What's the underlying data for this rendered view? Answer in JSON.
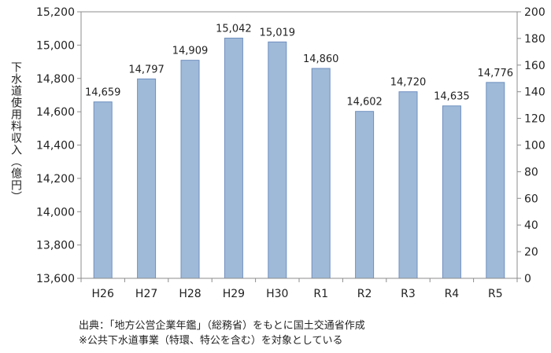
{
  "chart_data": {
    "type": "bar",
    "categories": [
      "H26",
      "H27",
      "H28",
      "H29",
      "H30",
      "R1",
      "R2",
      "R3",
      "R4",
      "R5"
    ],
    "values": [
      14659,
      14797,
      14909,
      15042,
      15019,
      14860,
      14602,
      14720,
      14635,
      14776
    ],
    "data_labels": [
      "14,659",
      "14,797",
      "14,909",
      "15,042",
      "15,019",
      "14,860",
      "14,602",
      "14,720",
      "14,635",
      "14,776"
    ],
    "ylabel": "下水道使用料収入（億円）",
    "ylim": [
      13600,
      15200
    ],
    "yticks": [
      "13,600",
      "13,800",
      "14,000",
      "14,200",
      "14,400",
      "14,600",
      "14,800",
      "15,000",
      "15,200"
    ],
    "y2lim": [
      0,
      200
    ],
    "y2ticks": [
      "0",
      "20",
      "40",
      "60",
      "80",
      "100",
      "120",
      "140",
      "160",
      "180",
      "200"
    ],
    "grid": false,
    "bar_color": "#9fbad9",
    "bar_edge_color": "#6f8fbf"
  },
  "notes": {
    "source": "出典：「地方公営企業年鑑」（総務省）をもとに国土交通省作成",
    "scope": "※公共下水道事業（特環、特公を含む）を対象としている"
  }
}
